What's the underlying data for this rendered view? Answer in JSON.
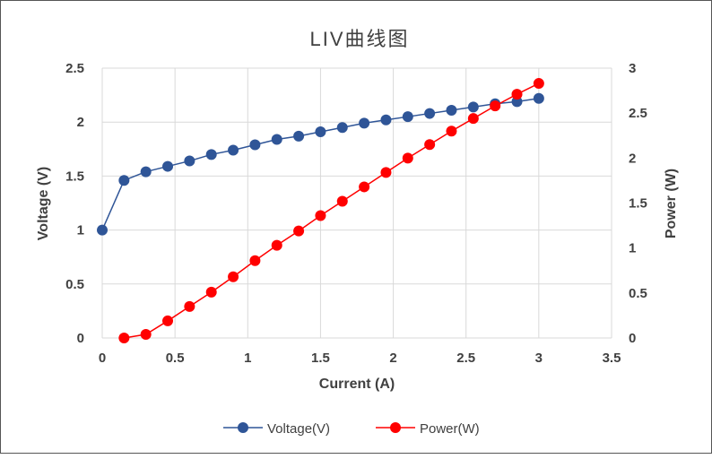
{
  "chart_data": {
    "type": "line",
    "title": "LIV曲线图",
    "xlabel": "Current (A)",
    "ylabel": "Voltage (V)",
    "y2label": "Power (W)",
    "xlim": [
      0,
      3.5
    ],
    "ylim": [
      0,
      2.5
    ],
    "y2lim": [
      0,
      3
    ],
    "xticks": [
      "0",
      "0.5",
      "1",
      "1.5",
      "2",
      "2.5",
      "3",
      "3.5"
    ],
    "yticks": [
      "0",
      "0.5",
      "1",
      "1.5",
      "2",
      "2.5"
    ],
    "y2ticks": [
      "0",
      "0.5",
      "1",
      "1.5",
      "2",
      "2.5",
      "3"
    ],
    "grid": true,
    "legend_position": "bottom",
    "series": [
      {
        "name": "Voltage(V)",
        "axis": "left",
        "color": "#2F5597",
        "x": [
          0,
          0.15,
          0.3,
          0.45,
          0.6,
          0.75,
          0.9,
          1.05,
          1.2,
          1.35,
          1.5,
          1.65,
          1.8,
          1.95,
          2.1,
          2.25,
          2.4,
          2.55,
          2.7,
          2.85,
          3.0
        ],
        "y": [
          1.0,
          1.46,
          1.54,
          1.59,
          1.64,
          1.7,
          1.74,
          1.79,
          1.84,
          1.87,
          1.91,
          1.95,
          1.99,
          2.02,
          2.05,
          2.08,
          2.11,
          2.14,
          2.17,
          2.19,
          2.22
        ]
      },
      {
        "name": "Power(W)",
        "axis": "right",
        "color": "#FF0000",
        "x": [
          0.15,
          0.3,
          0.45,
          0.6,
          0.75,
          0.9,
          1.05,
          1.2,
          1.35,
          1.5,
          1.65,
          1.8,
          1.95,
          2.1,
          2.25,
          2.4,
          2.55,
          2.7,
          2.85,
          3.0
        ],
        "y": [
          0.0,
          0.04,
          0.19,
          0.35,
          0.51,
          0.68,
          0.86,
          1.03,
          1.19,
          1.36,
          1.52,
          1.68,
          1.84,
          2.0,
          2.15,
          2.3,
          2.44,
          2.58,
          2.71,
          2.83
        ]
      }
    ]
  }
}
